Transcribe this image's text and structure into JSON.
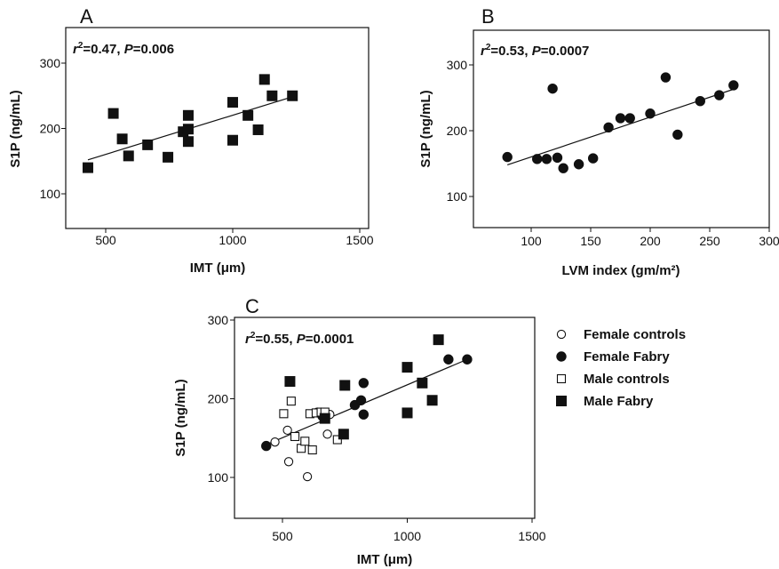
{
  "chart_data": [
    {
      "type": "scatter",
      "panel_label": "A",
      "xlabel": "IMT (μm)",
      "ylabel": "S1P (ng/mL)",
      "xlim": [
        300,
        1500
      ],
      "ylim": [
        50,
        350
      ],
      "xticks": [
        500,
        1000,
        1500
      ],
      "yticks": [
        100,
        200,
        300
      ],
      "stat": {
        "r2": "0.47",
        "p": "0.006"
      },
      "fit": {
        "x": [
          430,
          1240
        ],
        "y": [
          152,
          249
        ]
      },
      "series": [
        {
          "name": "",
          "marker": "square-filled",
          "points": [
            [
              430,
              140
            ],
            [
              530,
              223
            ],
            [
              565,
              184
            ],
            [
              590,
              158
            ],
            [
              665,
              175
            ],
            [
              745,
              156
            ],
            [
              805,
              195
            ],
            [
              825,
              220
            ],
            [
              825,
              180
            ],
            [
              825,
              199
            ],
            [
              1000,
              240
            ],
            [
              1000,
              182
            ],
            [
              1060,
              220
            ],
            [
              1100,
              198
            ],
            [
              1125,
              275
            ],
            [
              1155,
              250
            ],
            [
              1235,
              250
            ]
          ]
        }
      ]
    },
    {
      "type": "scatter",
      "panel_label": "B",
      "xlabel": "LVM index (gm/m²)",
      "ylabel": "S1P (ng/mL)",
      "xlim": [
        50,
        300
      ],
      "ylim": [
        50,
        350
      ],
      "xticks": [
        100,
        150,
        200,
        250,
        300
      ],
      "yticks": [
        100,
        200,
        300
      ],
      "stat": {
        "r2": "0.53",
        "p": "0.0007"
      },
      "fit": {
        "x": [
          80,
          270
        ],
        "y": [
          148,
          263
        ]
      },
      "series": [
        {
          "name": "",
          "marker": "circle-filled",
          "points": [
            [
              80,
              160
            ],
            [
              105,
              157
            ],
            [
              113,
              157
            ],
            [
              118,
              264
            ],
            [
              122,
              159
            ],
            [
              127,
              143
            ],
            [
              140,
              149
            ],
            [
              152,
              158
            ],
            [
              165,
              205
            ],
            [
              175,
              219
            ],
            [
              183,
              219
            ],
            [
              200,
              226
            ],
            [
              213,
              281
            ],
            [
              223,
              194
            ],
            [
              242,
              245
            ],
            [
              258,
              254
            ],
            [
              270,
              269
            ]
          ]
        }
      ]
    },
    {
      "type": "scatter",
      "panel_label": "C",
      "xlabel": "IMT (μm)",
      "ylabel": "S1P (ng/mL)",
      "xlim": [
        300,
        1500
      ],
      "ylim": [
        50,
        300
      ],
      "xticks": [
        500,
        1000,
        1500
      ],
      "yticks": [
        100,
        200,
        300
      ],
      "stat": {
        "r2": "0.55",
        "p": "0.0001"
      },
      "fit": {
        "x": [
          430,
          1240
        ],
        "y": [
          141,
          250
        ]
      },
      "series": [
        {
          "name": "Female controls",
          "marker": "circle-open",
          "points": [
            [
              470,
              145
            ],
            [
              520,
              160
            ],
            [
              525,
              120
            ],
            [
              600,
              101
            ],
            [
              640,
              183
            ],
            [
              655,
              183
            ],
            [
              680,
              155
            ],
            [
              690,
              180
            ]
          ]
        },
        {
          "name": "Female Fabry",
          "marker": "circle-filled",
          "points": [
            [
              435,
              140
            ],
            [
              660,
              178
            ],
            [
              790,
              192
            ],
            [
              815,
              198
            ],
            [
              825,
              220
            ],
            [
              825,
              180
            ],
            [
              1165,
              250
            ],
            [
              1240,
              250
            ]
          ]
        },
        {
          "name": "Male controls",
          "marker": "square-open",
          "points": [
            [
              505,
              181
            ],
            [
              535,
              197
            ],
            [
              550,
              152
            ],
            [
              575,
              137
            ],
            [
              590,
              146
            ],
            [
              610,
              181
            ],
            [
              620,
              135
            ],
            [
              635,
              182
            ],
            [
              655,
              183
            ],
            [
              670,
              183
            ],
            [
              720,
              148
            ]
          ]
        },
        {
          "name": "Male Fabry",
          "marker": "square-filled",
          "points": [
            [
              530,
              222
            ],
            [
              670,
              175
            ],
            [
              745,
              155
            ],
            [
              750,
              217
            ],
            [
              1000,
              240
            ],
            [
              1000,
              182
            ],
            [
              1060,
              220
            ],
            [
              1100,
              198
            ],
            [
              1125,
              275
            ]
          ]
        }
      ]
    }
  ]
}
